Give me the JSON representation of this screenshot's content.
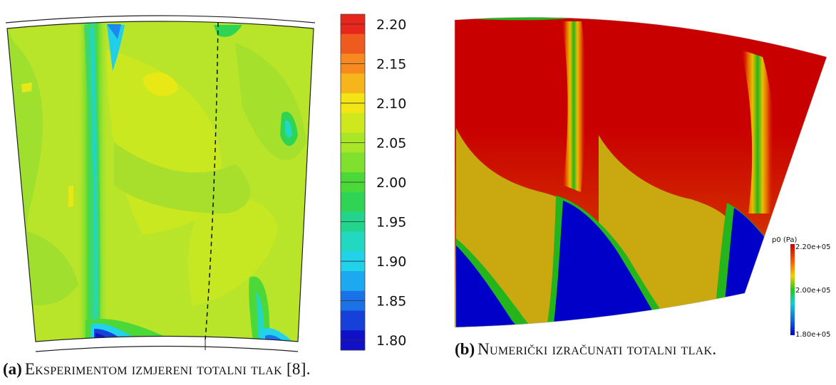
{
  "panel_a": {
    "caption_label": "(a)",
    "caption_text": "Eksperimentom izmjereni totalni tlak [8].",
    "colorbar": {
      "ticks": [
        "2.20",
        "2.15",
        "2.10",
        "2.05",
        "2.00",
        "1.95",
        "1.90",
        "1.85",
        "1.80"
      ],
      "colors": [
        "#e8271c",
        "#ef5a1e",
        "#f6891f",
        "#f6b51a",
        "#f2e415",
        "#cfe81e",
        "#a9e628",
        "#7fe02e",
        "#4bd838",
        "#2fd455",
        "#23d48c",
        "#22d8c0",
        "#22d2ea",
        "#1da9ef",
        "#1a72e6",
        "#1640d8",
        "#1010c8"
      ]
    }
  },
  "panel_b": {
    "caption_label": "(b)",
    "caption_text": "Numerički izračunati totalni tlak.",
    "colorbar": {
      "title": "p0 (Pa)",
      "max_label": "2.20e+05",
      "mid_label": "2.00e+05",
      "min_label": "1.80e+05"
    }
  },
  "colors": {
    "high": "#c90000",
    "mid": "#24b51d",
    "low": "#0000c8"
  }
}
